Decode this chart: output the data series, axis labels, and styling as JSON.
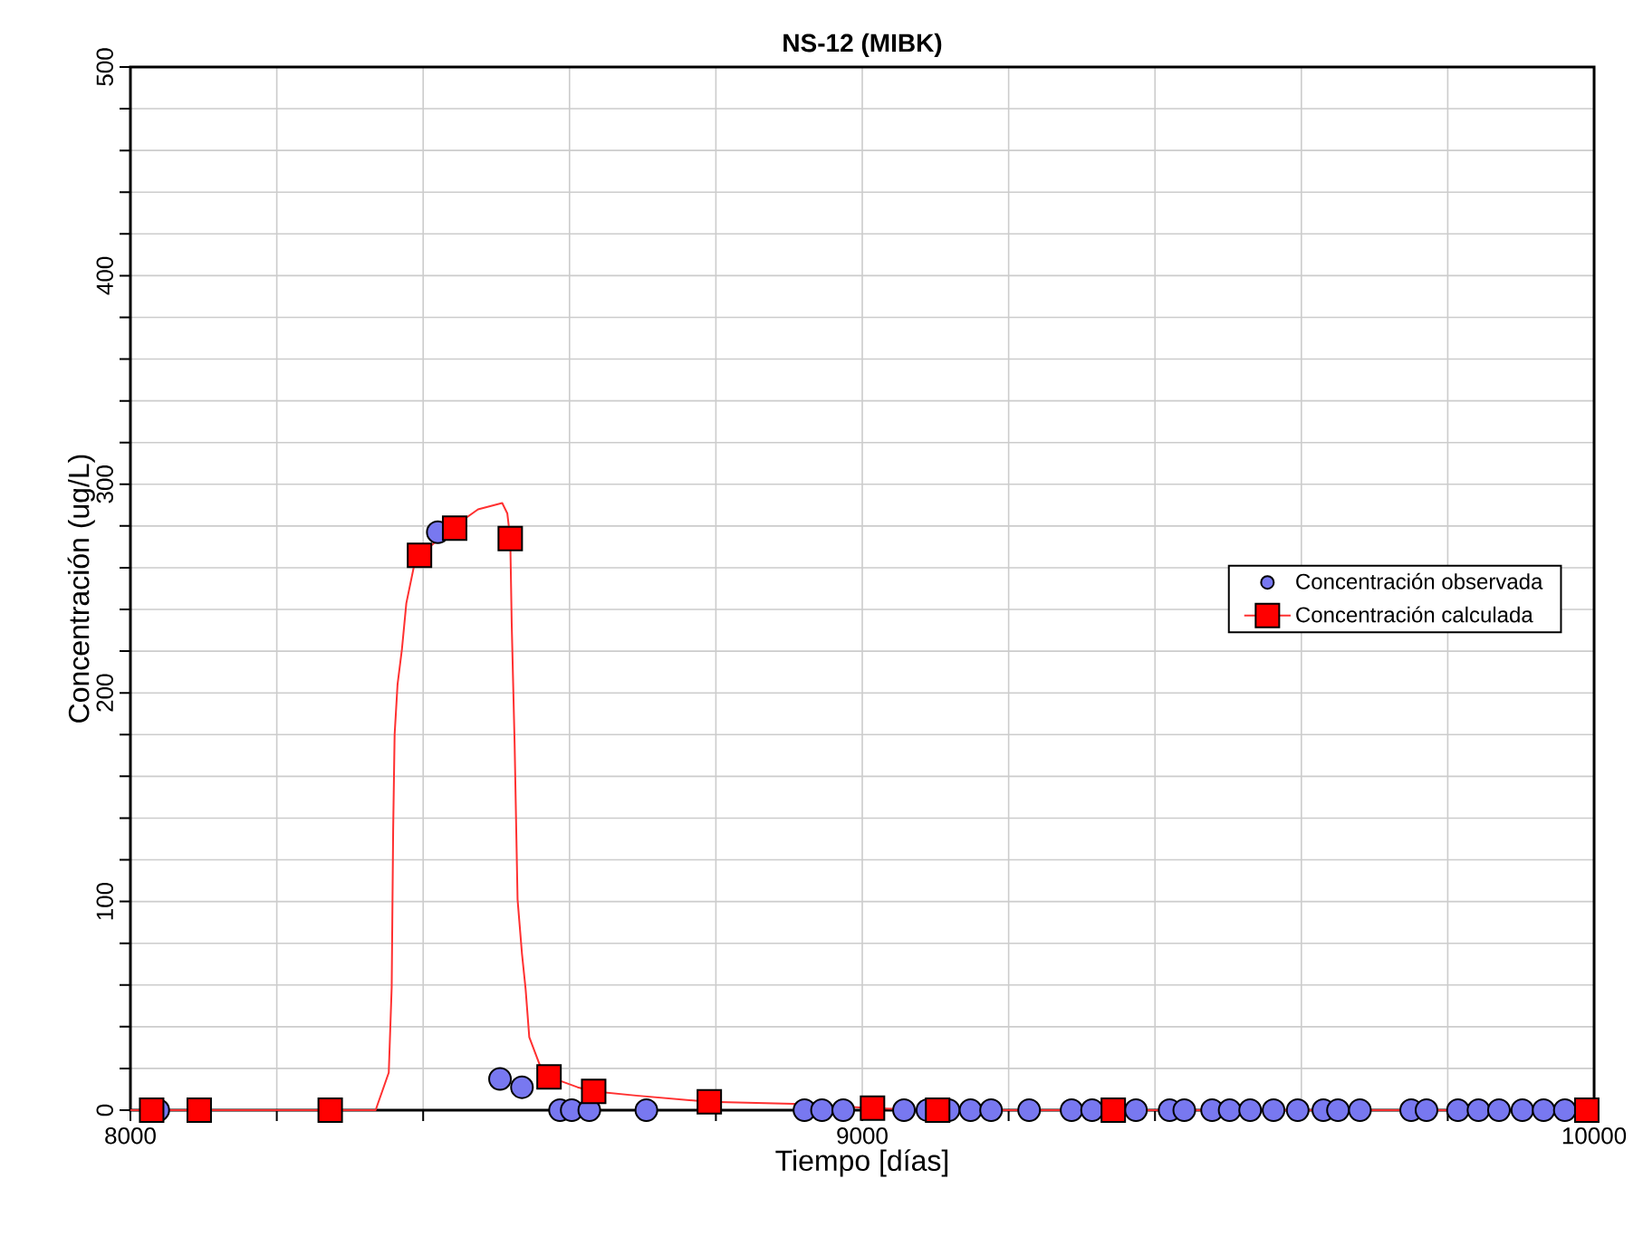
{
  "chart_data": {
    "type": "scatter",
    "title": "NS-12 (MIBK)",
    "xlabel": "Tiempo [días]",
    "ylabel": "Concentración (ug/L)",
    "xlim": [
      8000,
      10000
    ],
    "xticks": [
      8000,
      {
        "value": 8200,
        "label": null
      },
      {
        "value": 8400,
        "label": null
      },
      {
        "value": 8600,
        "label": null
      },
      {
        "value": 8800,
        "label": null
      },
      9000,
      {
        "value": 9200,
        "label": null
      },
      {
        "value": 9400,
        "label": null
      },
      {
        "value": 9600,
        "label": null
      },
      {
        "value": 9800,
        "label": null
      },
      10000
    ],
    "ylim": [
      0,
      500
    ],
    "yticks": [
      0,
      {
        "value": 20,
        "label": null
      },
      {
        "value": 40,
        "label": null
      },
      {
        "value": 60,
        "label": null
      },
      {
        "value": 80,
        "label": null
      },
      100,
      {
        "value": 120,
        "label": null
      },
      {
        "value": 140,
        "label": null
      },
      {
        "value": 160,
        "label": null
      },
      {
        "value": 180,
        "label": null
      },
      200,
      {
        "value": 220,
        "label": null
      },
      {
        "value": 240,
        "label": null
      },
      {
        "value": 260,
        "label": null
      },
      {
        "value": 280,
        "label": null
      },
      300,
      {
        "value": 320,
        "label": null
      },
      {
        "value": 340,
        "label": null
      },
      {
        "value": 360,
        "label": null
      },
      {
        "value": 380,
        "label": null
      },
      400,
      {
        "value": 420,
        "label": null
      },
      {
        "value": 440,
        "label": null
      },
      {
        "value": 460,
        "label": null
      },
      {
        "value": 480,
        "label": null
      },
      500
    ],
    "grid": true,
    "legend": "right",
    "series": [
      {
        "type": "line",
        "color": "#ff3030",
        "marker": "none",
        "x": [
          8000,
          8335,
          8353,
          8357,
          8359,
          8361,
          8365,
          8371,
          8377,
          8387,
          8395,
          8443,
          8475,
          8508,
          8515,
          8519,
          8521,
          8525,
          8529,
          8535,
          8540,
          8545,
          8559,
          8572,
          8611,
          8633,
          8691,
          8791,
          8906,
          9014,
          9103,
          9343,
          10000
        ],
        "values": [
          0,
          0,
          18,
          59,
          134,
          180,
          204,
          221,
          243,
          260,
          266,
          280,
          288,
          291,
          286,
          274,
          233,
          175,
          101,
          75,
          58,
          35,
          22,
          16,
          11,
          9,
          7,
          4,
          3,
          1,
          0,
          0,
          0
        ]
      },
      {
        "name": "Concentración observada",
        "marker": "circle",
        "color": "#7878f0",
        "x": [
          8038,
          8420,
          8505,
          8535,
          8587,
          8603,
          8627,
          8705,
          8921,
          8945,
          8974,
          9057,
          9089,
          9118,
          9148,
          9176,
          9228,
          9286,
          9314,
          9374,
          9420,
          9440,
          9478,
          9502,
          9530,
          9562,
          9595,
          9630,
          9650,
          9680,
          9750,
          9771,
          9814,
          9842,
          9870,
          9902,
          9931,
          9960
        ],
        "values": [
          0,
          277,
          15,
          11,
          0,
          0,
          0,
          0,
          0,
          0,
          0,
          0,
          0,
          0,
          0,
          0,
          0,
          0,
          0,
          0,
          0,
          0,
          0,
          0,
          0,
          0,
          0,
          0,
          0,
          0,
          0,
          0,
          0,
          0,
          0,
          0,
          0,
          0
        ]
      },
      {
        "name": "Concentración calculada",
        "marker": "square",
        "color": "#ff0000",
        "x": [
          8029,
          8094,
          8273,
          8395,
          8443,
          8519,
          8572,
          8633,
          8791,
          9014,
          9103,
          9343,
          9990
        ],
        "values": [
          0,
          0,
          0,
          266,
          279,
          274,
          16,
          9,
          4,
          1,
          0,
          0,
          0
        ]
      }
    ]
  }
}
